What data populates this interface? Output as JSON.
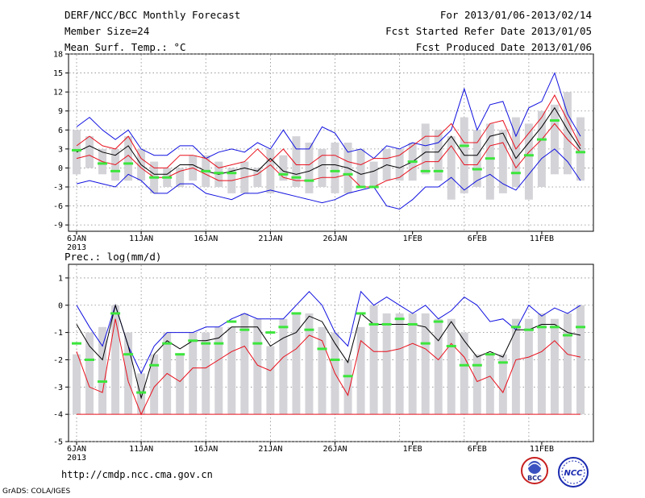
{
  "header": {
    "title": "DERF/NCC/BCC Monthly Forecast",
    "member_size": "Member Size=24",
    "variable": "Mean Surf. Temp.: °C",
    "period": "For 2013/01/06-2013/02/14",
    "fcst_started": "Fcst Started Refer Date 2013/01/05",
    "fcst_produced": "Fcst Produced Date 2013/01/06"
  },
  "footer": {
    "url": "http://cmdp.ncc.cma.gov.cn",
    "credit": "GrADS: COLA/IGES"
  },
  "logos": {
    "bcc": "BCC",
    "ncc": "NCC"
  },
  "colors": {
    "spread_bar": "#d3d3d8",
    "mean": "#000000",
    "inner_bound": "#e8101c",
    "outer_bound": "#1010e0",
    "observed": "#3ce63c",
    "grid": "#888888"
  },
  "chart_data": [
    {
      "type": "line",
      "title": "Mean Surf. Temp.: °C",
      "ylim": [
        -10,
        18
      ],
      "yticks": [
        18,
        15,
        12,
        9,
        6,
        3,
        0,
        -3,
        -6,
        -9
      ],
      "xticks": [
        {
          "day": 0,
          "label": "6JAN"
        },
        {
          "day": 5,
          "label": "11JAN"
        },
        {
          "day": 10,
          "label": "16JAN"
        },
        {
          "day": 15,
          "label": "21JAN"
        },
        {
          "day": 20,
          "label": "26JAN"
        },
        {
          "day": 26,
          "label": "1FEB"
        },
        {
          "day": 31,
          "label": "6FEB"
        },
        {
          "day": 36,
          "label": "11FEB"
        }
      ],
      "year_label": "2013",
      "days": 40,
      "series": [
        {
          "name": "spread_max",
          "values": [
            6,
            5,
            3,
            3,
            5,
            3,
            1,
            0,
            0,
            2,
            2,
            1,
            0,
            1,
            0,
            3,
            2,
            5,
            4,
            3,
            4,
            4,
            3,
            1,
            3,
            3,
            4,
            7,
            6,
            5,
            8,
            6,
            7,
            6,
            8,
            7,
            9,
            10,
            12,
            8
          ]
        },
        {
          "name": "spread_min",
          "values": [
            -1,
            0,
            -1,
            -2,
            -2,
            -2,
            -4,
            -3,
            -3,
            -2,
            -3,
            -3,
            -4,
            -4,
            -3,
            -4,
            -2,
            -3,
            -4,
            -3,
            -4,
            -4,
            -3,
            -3,
            -2,
            -2,
            -2,
            -1,
            -2,
            -5,
            -4,
            -3,
            -5,
            -4,
            -3,
            -5,
            -3,
            -1,
            -1,
            -2
          ]
        },
        {
          "name": "outer_max",
          "values": [
            6.5,
            8,
            6,
            4.5,
            6,
            3,
            2,
            2,
            3.5,
            3.5,
            1.5,
            2.5,
            3,
            2.5,
            4,
            3,
            6,
            3,
            3,
            6.5,
            5.5,
            2.5,
            3,
            1.5,
            3.5,
            3,
            4,
            3.5,
            4,
            6,
            12.5,
            6,
            10,
            10.5,
            5,
            9.5,
            10.5,
            15,
            8.5,
            5
          ]
        },
        {
          "name": "inner_max",
          "values": [
            3.5,
            5,
            3.5,
            3,
            5,
            1.5,
            0,
            0,
            2,
            2,
            1.5,
            0,
            0.5,
            1,
            3,
            1,
            3,
            0.5,
            0.5,
            2,
            2,
            1,
            0.5,
            1.5,
            1.5,
            2,
            3.5,
            5,
            5,
            7,
            4,
            4,
            7,
            7.5,
            3,
            5.5,
            8,
            11.5,
            7.5,
            3.5
          ]
        },
        {
          "name": "mean",
          "values": [
            2.5,
            3.5,
            2.5,
            2,
            3.5,
            0.5,
            -1,
            -1,
            0.5,
            0.5,
            -0.5,
            -1,
            -0.5,
            0,
            -0.5,
            1.5,
            -0.5,
            -1,
            -0.5,
            0.5,
            0.5,
            0,
            -1,
            -0.5,
            0.5,
            0,
            1,
            2.5,
            2.5,
            5,
            2,
            2,
            5,
            5.5,
            1.5,
            4,
            6.5,
            9.5,
            6,
            3
          ]
        },
        {
          "name": "inner_min",
          "values": [
            1.5,
            2,
            1,
            0.5,
            2,
            0,
            -1.5,
            -1.5,
            -0.5,
            0,
            -1,
            -2,
            -2,
            -1.5,
            -1,
            0.5,
            -1.5,
            -2,
            -2,
            -1.5,
            -1.5,
            -1,
            -3,
            -3,
            -2,
            -1.5,
            0,
            1,
            1,
            3.5,
            0.5,
            0.5,
            3.5,
            4,
            0,
            2.5,
            4.5,
            7,
            4.5,
            2.5
          ]
        },
        {
          "name": "outer_min",
          "values": [
            -2.5,
            -2,
            -2.5,
            -3,
            -1,
            -2,
            -4,
            -4,
            -2.5,
            -2.5,
            -4,
            -4.5,
            -5,
            -4,
            -4,
            -3.5,
            -4,
            -4.5,
            -5,
            -5.5,
            -5,
            -4,
            -3.5,
            -3,
            -6,
            -6.5,
            -5,
            -3,
            -3,
            -1.5,
            -3.5,
            -2,
            -1,
            -2.5,
            -3.5,
            -1,
            1.5,
            3,
            1,
            -2
          ]
        },
        {
          "name": "observed",
          "values": [
            2.8,
            null,
            0.7,
            -0.5,
            0.7,
            null,
            -1.5,
            -1.5,
            null,
            null,
            -0.5,
            -0.8,
            -0.8,
            null,
            null,
            null,
            -1,
            -1.5,
            -2,
            null,
            -0.5,
            -1,
            -3,
            -3,
            null,
            null,
            1,
            -0.5,
            -0.5,
            null,
            3.5,
            -0.2,
            1.5,
            null,
            -0.8,
            2,
            4.5,
            7.5,
            null,
            2.5
          ]
        }
      ]
    },
    {
      "type": "line",
      "title": "Prec.: log(mm/d)",
      "ylim": [
        -5,
        1.5
      ],
      "yticks": [
        1,
        0,
        -1,
        -2,
        -3,
        -4,
        -5
      ],
      "xticks": [
        {
          "day": 0,
          "label": "6JAN"
        },
        {
          "day": 5,
          "label": "11JAN"
        },
        {
          "day": 10,
          "label": "16JAN"
        },
        {
          "day": 15,
          "label": "21JAN"
        },
        {
          "day": 20,
          "label": "26JAN"
        },
        {
          "day": 26,
          "label": "1FEB"
        },
        {
          "day": 31,
          "label": "6FEB"
        },
        {
          "day": 36,
          "label": "11FEB"
        }
      ],
      "year_label": "2013",
      "days": 40,
      "baseline": -4,
      "series": [
        {
          "name": "spread_max",
          "values": [
            -1.8,
            -1,
            -0.8,
            0,
            -1,
            -2.5,
            -1.8,
            -1,
            -1.8,
            -1,
            -1,
            -0.8,
            -0.8,
            -0.3,
            -0.5,
            -1.5,
            -0.5,
            -0.3,
            -0.3,
            -0.8,
            -1,
            -2,
            -0.8,
            0,
            -0.3,
            -0.3,
            -0.3,
            -0.3,
            -0.5,
            -0.5,
            -1,
            -1.8,
            -1.8,
            -1.8,
            -0.5,
            -0.5,
            -0.3,
            -0.5,
            -0.3,
            0
          ]
        },
        {
          "name": "outer_max",
          "values": [
            0,
            -0.8,
            -1.5,
            0,
            -1.5,
            -2.5,
            -1.5,
            -1,
            -1,
            -1,
            -0.8,
            -0.8,
            -0.5,
            -0.3,
            -0.5,
            -0.5,
            -0.5,
            0,
            0.5,
            0,
            -1,
            -1.5,
            0.5,
            0,
            0.3,
            0,
            -0.3,
            0,
            -0.5,
            -0.2,
            0.3,
            0,
            -0.6,
            -0.5,
            -0.9,
            0,
            -0.4,
            -0.1,
            -0.3,
            0
          ]
        },
        {
          "name": "mean",
          "values": [
            -0.7,
            -1.5,
            -2,
            0,
            -1.5,
            -3.4,
            -1.8,
            -1.3,
            -1.6,
            -1.3,
            -1.3,
            -1.2,
            -0.8,
            -0.8,
            -0.8,
            -1.5,
            -1.2,
            -1,
            -0.4,
            -0.6,
            -1.4,
            -2.1,
            -0.3,
            -0.7,
            -0.7,
            -0.7,
            -0.7,
            -0.8,
            -1.3,
            -0.6,
            -1.3,
            -1.9,
            -1.7,
            -1.9,
            -0.9,
            -0.9,
            -0.7,
            -0.7,
            -1,
            -1.1
          ]
        },
        {
          "name": "inner_min",
          "values": [
            -1.7,
            -3,
            -3.2,
            -0.5,
            -2.8,
            -4,
            -3,
            -2.5,
            -2.8,
            -2.3,
            -2.3,
            -2,
            -1.7,
            -1.5,
            -2.2,
            -2.4,
            -1.9,
            -1.6,
            -1.1,
            -1.3,
            -2.5,
            -3.3,
            -1.3,
            -1.7,
            -1.7,
            -1.6,
            -1.4,
            -1.6,
            -2,
            -1.4,
            -1.9,
            -2.8,
            -2.6,
            -3.2,
            -2,
            -1.9,
            -1.7,
            -1.3,
            -1.8,
            -1.9
          ]
        },
        {
          "name": "observed",
          "values": [
            -1.4,
            -2,
            -2.8,
            -0.3,
            -1.8,
            -3.2,
            -2.2,
            -1.4,
            -1.8,
            -1.3,
            -1.4,
            -1.4,
            -0.6,
            -0.9,
            -1.4,
            -1,
            -0.8,
            -0.3,
            -0.9,
            -1.6,
            -2,
            -2.6,
            -0.3,
            -0.7,
            -0.7,
            -0.5,
            -0.7,
            -1.4,
            -0.6,
            -1.5,
            -2.2,
            -2.2,
            -1.8,
            -2.1,
            -0.8,
            -0.9,
            -0.8,
            -0.8,
            -1.1,
            -0.8
          ]
        }
      ]
    }
  ]
}
